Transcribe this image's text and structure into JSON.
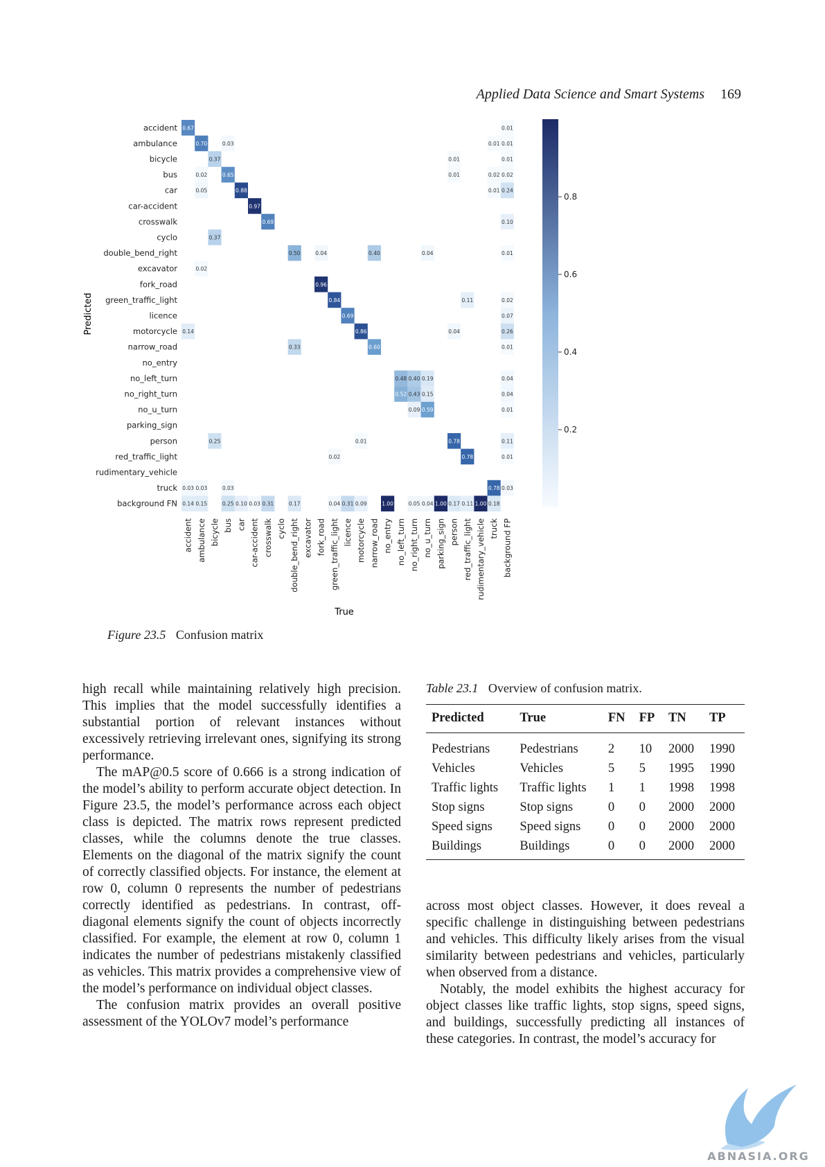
{
  "running_head": {
    "journal": "Applied Data Science and Smart Systems",
    "page": "169"
  },
  "chart_data": {
    "type": "heatmap",
    "ylabel": "Predicted",
    "xlabel": "True",
    "y_labels": [
      "accident",
      "ambulance",
      "bicycle",
      "bus",
      "car",
      "car-accident",
      "crosswalk",
      "cyclo",
      "double_bend_right",
      "excavator",
      "fork_road",
      "green_traffic_light",
      "licence",
      "motorcycle",
      "narrow_road",
      "no_entry",
      "no_left_turn",
      "no_right_turn",
      "no_u_turn",
      "parking_sign",
      "person",
      "red_traffic_light",
      "rudimentary_vehicle",
      "truck",
      "background FN"
    ],
    "x_labels": [
      "accident",
      "ambulance",
      "bicycle",
      "bus",
      "car",
      "car-accident",
      "crosswalk",
      "cyclo",
      "double_bend_right",
      "excavator",
      "fork_road",
      "green_traffic_light",
      "licence",
      "motorcycle",
      "narrow_road",
      "no_entry",
      "no_left_turn",
      "no_right_turn",
      "no_u_turn",
      "parking_sign",
      "person",
      "red_traffic_light",
      "rudimentary_vehicle",
      "truck",
      "background FP"
    ],
    "cells": [
      [
        0,
        0,
        "0.67"
      ],
      [
        0,
        24,
        "0.01"
      ],
      [
        1,
        1,
        "0.70"
      ],
      [
        1,
        3,
        "0.03"
      ],
      [
        1,
        23,
        "0.01"
      ],
      [
        1,
        24,
        "0.01"
      ],
      [
        2,
        2,
        "0.37"
      ],
      [
        2,
        20,
        "0.01"
      ],
      [
        2,
        24,
        "0.01"
      ],
      [
        3,
        1,
        "0.02"
      ],
      [
        3,
        3,
        "0.65"
      ],
      [
        3,
        20,
        "0.01"
      ],
      [
        3,
        23,
        "0.02"
      ],
      [
        3,
        24,
        "0.02"
      ],
      [
        4,
        1,
        "0.05"
      ],
      [
        4,
        4,
        "0.88"
      ],
      [
        4,
        23,
        "0.01"
      ],
      [
        4,
        24,
        "0.24"
      ],
      [
        5,
        5,
        "0.97"
      ],
      [
        6,
        6,
        "0.69"
      ],
      [
        6,
        24,
        "0.10"
      ],
      [
        7,
        2,
        "0.37"
      ],
      [
        8,
        8,
        "0.50"
      ],
      [
        8,
        10,
        "0.04"
      ],
      [
        8,
        14,
        "0.40"
      ],
      [
        8,
        18,
        "0.04"
      ],
      [
        8,
        24,
        "0.01"
      ],
      [
        9,
        1,
        "0.02"
      ],
      [
        10,
        10,
        "0.96"
      ],
      [
        11,
        11,
        "0.84"
      ],
      [
        11,
        21,
        "0.11"
      ],
      [
        11,
        24,
        "0.02"
      ],
      [
        12,
        12,
        "0.69"
      ],
      [
        12,
        24,
        "0.07"
      ],
      [
        13,
        0,
        "0.14"
      ],
      [
        13,
        13,
        "0.86"
      ],
      [
        13,
        20,
        "0.04"
      ],
      [
        13,
        24,
        "0.26"
      ],
      [
        14,
        8,
        "0.33"
      ],
      [
        14,
        14,
        "0.60"
      ],
      [
        14,
        24,
        "0.01"
      ],
      [
        16,
        16,
        "0.48"
      ],
      [
        16,
        17,
        "0.40"
      ],
      [
        16,
        18,
        "0.19"
      ],
      [
        16,
        24,
        "0.04"
      ],
      [
        17,
        16,
        "0.52"
      ],
      [
        17,
        17,
        "0.43"
      ],
      [
        17,
        18,
        "0.15"
      ],
      [
        17,
        24,
        "0.04"
      ],
      [
        18,
        17,
        "0.09"
      ],
      [
        18,
        18,
        "0.59"
      ],
      [
        18,
        24,
        "0.01"
      ],
      [
        20,
        2,
        "0.25"
      ],
      [
        20,
        13,
        "0.01"
      ],
      [
        20,
        20,
        "0.78"
      ],
      [
        20,
        24,
        "0.11"
      ],
      [
        21,
        11,
        "0.02"
      ],
      [
        21,
        21,
        "0.78"
      ],
      [
        21,
        24,
        "0.01"
      ],
      [
        23,
        0,
        "0.03"
      ],
      [
        23,
        1,
        "0.03"
      ],
      [
        23,
        3,
        "0.03"
      ],
      [
        23,
        23,
        "0.78"
      ],
      [
        23,
        24,
        "0.03"
      ],
      [
        24,
        0,
        "0.14"
      ],
      [
        24,
        1,
        "0.15"
      ],
      [
        24,
        3,
        "0.25"
      ],
      [
        24,
        4,
        "0.10"
      ],
      [
        24,
        5,
        "0.03"
      ],
      [
        24,
        6,
        "0.31"
      ],
      [
        24,
        8,
        "0.17"
      ],
      [
        24,
        11,
        "0.04"
      ],
      [
        24,
        12,
        "0.31"
      ],
      [
        24,
        13,
        "0.09"
      ],
      [
        24,
        15,
        "1.00"
      ],
      [
        24,
        17,
        "0.05"
      ],
      [
        24,
        18,
        "0.04"
      ],
      [
        24,
        19,
        "1.00"
      ],
      [
        24,
        20,
        "0.17"
      ],
      [
        24,
        21,
        "0.11"
      ],
      [
        24,
        22,
        "1.00"
      ],
      [
        24,
        23,
        "0.18"
      ]
    ],
    "colorbar_ticks": [
      "0.8",
      "0.6",
      "0.4",
      "0.2"
    ],
    "colorbar_tick_values": [
      0.8,
      0.6,
      0.4,
      0.2
    ],
    "color_range": [
      0,
      1
    ]
  },
  "figure": {
    "label": "Figure 23.5",
    "caption": "Confusion matrix"
  },
  "left_column": [
    "high recall while maintaining relatively high precision. This implies that the model successfully identifies a substantial portion of relevant instances without excessively retrieving irrelevant ones, signifying its strong performance.",
    "The mAP@0.5 score of 0.666 is a strong indication of the model’s ability to perform accurate object detection. In Figure 23.5, the model’s performance across each object class is depicted. The matrix rows represent predicted classes, while the columns denote the true classes. Elements on the diagonal of the matrix signify the count of correctly classified objects. For instance, the element at row 0, column 0 represents the number of pedestrians correctly identified as pedestrians. In contrast, off-diagonal elements signify the count of objects incorrectly classified. For example, the element at row 0, column 1 indicates the number of pedestrians mistakenly classified as vehicles. This matrix provides a comprehensive view of the model’s performance on individual object classes.",
    "The confusion matrix provides an overall positive assessment of the YOLOv7 model’s performance"
  ],
  "table": {
    "label": "Table 23.1",
    "caption": "Overview of confusion matrix.",
    "headers": [
      "Predicted",
      "True",
      "FN",
      "FP",
      "TN",
      "TP"
    ],
    "rows": [
      [
        "Pedestrians",
        "Pedestrians",
        "2",
        "10",
        "2000",
        "1990"
      ],
      [
        "Vehicles",
        "Vehicles",
        "5",
        "5",
        "1995",
        "1990"
      ],
      [
        "Traffic lights",
        "Traffic lights",
        "1",
        "1",
        "1998",
        "1998"
      ],
      [
        "Stop signs",
        "Stop signs",
        "0",
        "0",
        "2000",
        "2000"
      ],
      [
        "Speed signs",
        "Speed signs",
        "0",
        "0",
        "2000",
        "2000"
      ],
      [
        "Buildings",
        "Buildings",
        "0",
        "0",
        "2000",
        "2000"
      ]
    ]
  },
  "right_column": [
    "across most object classes. However, it does reveal a specific challenge in distinguishing between pedestrians and vehicles. This difficulty likely arises from the visual similarity between pedestrians and vehicles, particularly when observed from a distance.",
    "Notably, the model exhibits the highest accuracy for object classes like traffic lights, stop signs, speed signs, and buildings, successfully predicting all instances of these categories. In contrast, the model’s accuracy for"
  ],
  "watermark": {
    "text": "ABNASIA.ORG",
    "icon": "winged-creature-logo"
  }
}
